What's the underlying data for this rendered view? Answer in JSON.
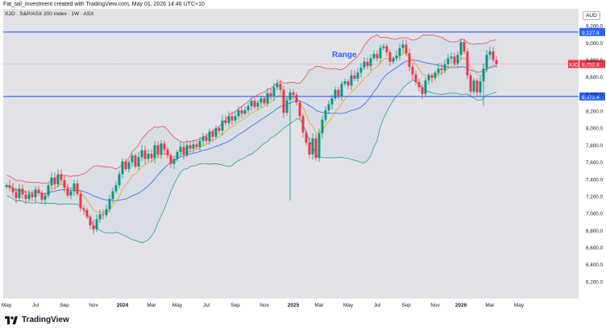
{
  "header": {
    "byline": "Fat_tail_Investment created with TradingView.com, May 01, 2026 14:46 UTC+10",
    "symbol": "XJO · S&P/ASX 200 Index · 1W · ASX",
    "currency": "AUD"
  },
  "brand": {
    "name": "TradingView"
  },
  "chart_data": {
    "type": "candlestick",
    "title": "",
    "annotation": "Range",
    "timeframe": "1W",
    "ylim": [
      6000,
      9400
    ],
    "y_ticks": [
      6200,
      6400,
      6600,
      6800,
      7000,
      7200,
      7400,
      7600,
      7800,
      8000,
      8200,
      8400,
      8600,
      8800,
      9000,
      9200,
      9400
    ],
    "y_tick_labels": [
      "6,200.0",
      "6,400.0",
      "6,600.0",
      "6,800.0",
      "7,000.0",
      "7,200.0",
      "7,400.0",
      "7,600.0",
      "7,800.0",
      "8,000.0",
      "8,200.0",
      "8,400.0",
      "8,600.0",
      "8,800.0",
      "9,000.0",
      "9,200.0",
      "9,400.0"
    ],
    "x_tick_labels": [
      "May",
      "Jul",
      "Sep",
      "Nov",
      "2024",
      "Mar",
      "May",
      "Jul",
      "Sep",
      "Nov",
      "2025",
      "Mar",
      "May",
      "Jul",
      "Sep",
      "Nov",
      "2026",
      "Mar",
      "May"
    ],
    "x_tick_bar_index": [
      0,
      9,
      18,
      27,
      36,
      45,
      53,
      62,
      71,
      80,
      89,
      97,
      106,
      115,
      124,
      133,
      141,
      150,
      159
    ],
    "horizontal_lines": [
      {
        "value": 9127.8,
        "label": "9,127.8",
        "color": "#2962ff"
      },
      {
        "value": 8372.4,
        "label": "8,372.4",
        "color": "#2962ff"
      }
    ],
    "last_price": {
      "value": 8752.8,
      "label": "8,752.8",
      "symbol": "XJO",
      "color": "#f23645"
    },
    "colors": {
      "up": "#089981",
      "down": "#f23645",
      "upper_band": "#f23645",
      "lower_band": "#089981",
      "basis": "#2962ff",
      "ema": "#f7a21b",
      "band_fill": "#d3dbe3"
    },
    "closes": [
      7330,
      7300,
      7250,
      7180,
      7290,
      7220,
      7170,
      7230,
      7190,
      7280,
      7240,
      7160,
      7210,
      7330,
      7420,
      7340,
      7460,
      7390,
      7300,
      7210,
      7260,
      7350,
      7230,
      7060,
      7040,
      6960,
      6860,
      6810,
      6930,
      6990,
      6980,
      7050,
      7170,
      7260,
      7330,
      7460,
      7610,
      7520,
      7600,
      7680,
      7550,
      7660,
      7740,
      7640,
      7700,
      7650,
      7800,
      7690,
      7820,
      7750,
      7680,
      7580,
      7640,
      7720,
      7780,
      7690,
      7800,
      7760,
      7810,
      7780,
      7850,
      7900,
      7850,
      7960,
      7900,
      8000,
      7970,
      8090,
      8060,
      8140,
      8090,
      8140,
      8210,
      8170,
      8210,
      8260,
      8320,
      8250,
      8300,
      8350,
      8290,
      8410,
      8380,
      8480,
      8520,
      8450,
      8180,
      8330,
      8420,
      8390,
      8300,
      8140,
      7950,
      7830,
      7690,
      7880,
      7650,
      7940,
      8100,
      8210,
      8280,
      8350,
      8450,
      8380,
      8520,
      8550,
      8500,
      8620,
      8580,
      8650,
      8710,
      8780,
      8730,
      8820,
      8870,
      8820,
      8940,
      8960,
      8890,
      8780,
      8820,
      8850,
      8940,
      8980,
      8880,
      8720,
      8630,
      8540,
      8480,
      8400,
      8560,
      8620,
      8590,
      8650,
      8700,
      8680,
      8750,
      8820,
      8840,
      8760,
      8860,
      9010,
      8900,
      8620,
      8430,
      8560,
      8420,
      8550,
      8700,
      8860,
      8900,
      8800,
      8752.8
    ]
  }
}
